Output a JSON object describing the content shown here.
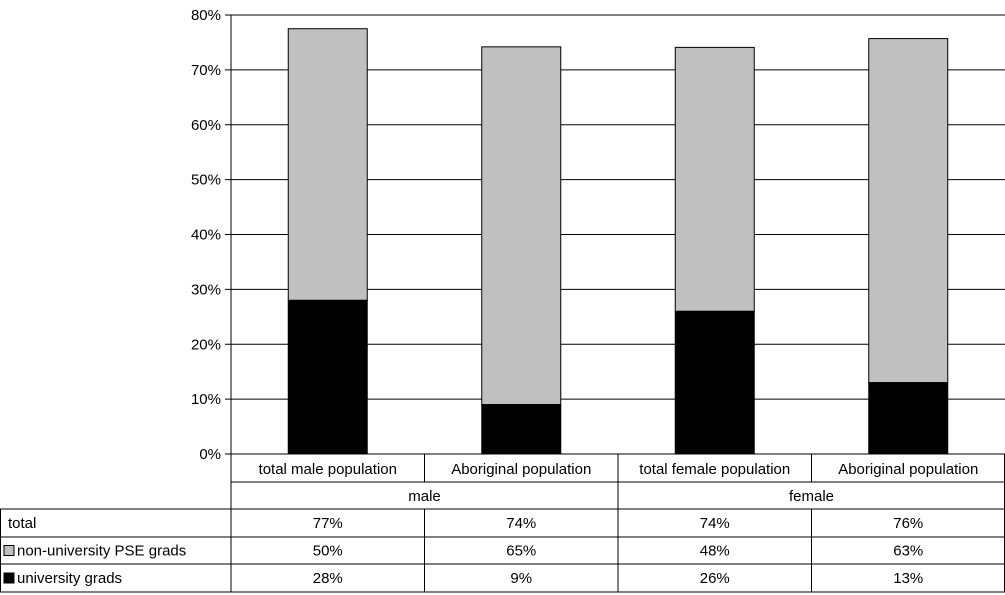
{
  "chart_data": {
    "type": "bar",
    "stacked": true,
    "groups": [
      {
        "label": "male",
        "categories": [
          "total male population",
          "Aboriginal population"
        ]
      },
      {
        "label": "female",
        "categories": [
          "total female population",
          "Aboriginal population"
        ]
      }
    ],
    "categories": [
      "total male population",
      "Aboriginal population",
      "total female population",
      "Aboriginal population"
    ],
    "series": [
      {
        "name": "university grads",
        "color": "#000000",
        "values": [
          28,
          9,
          26,
          13
        ],
        "labels": [
          "28%",
          "9%",
          "26%",
          "13%"
        ]
      },
      {
        "name": "non-university PSE grads",
        "color": "#c0c0c0",
        "values": [
          50,
          65,
          48,
          63
        ],
        "labels": [
          "50%",
          "65%",
          "48%",
          "63%"
        ]
      }
    ],
    "totals": {
      "name": "total",
      "values": [
        77.5,
        74.2,
        74.1,
        75.7
      ],
      "labels": [
        "77%",
        "74%",
        "74%",
        "76%"
      ]
    },
    "ylim": [
      0,
      80
    ],
    "yticks": [
      0,
      10,
      20,
      30,
      40,
      50,
      60,
      70,
      80
    ],
    "ytick_labels": [
      "0%",
      "10%",
      "20%",
      "30%",
      "40%",
      "50%",
      "60%",
      "70%",
      "80%"
    ],
    "grid": true,
    "data_table": true
  }
}
